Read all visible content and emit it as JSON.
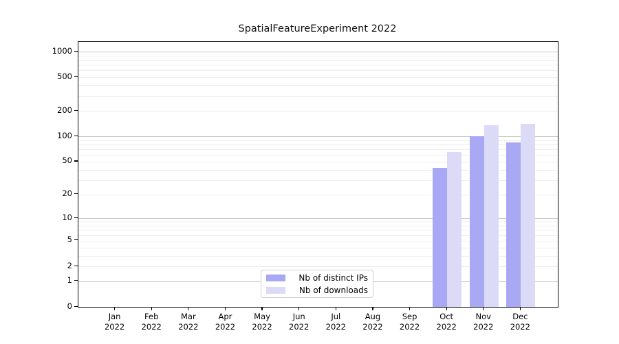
{
  "figure": {
    "background": "#ffffff",
    "text_color": "#000000"
  },
  "chart_data": {
    "type": "bar",
    "title": "SpatialFeatureExperiment 2022",
    "xlabel": "",
    "ylabel": "",
    "categories": [
      "Jan",
      "Feb",
      "Mar",
      "Apr",
      "May",
      "Jun",
      "Jul",
      "Aug",
      "Sep",
      "Oct",
      "Nov",
      "Dec"
    ],
    "category_year": "2022",
    "series": [
      {
        "name": "Nb of distinct IPs",
        "color": "#a8a8f4",
        "values": [
          0,
          0,
          0,
          0,
          0,
          0,
          0,
          0,
          0,
          42,
          100,
          85
        ]
      },
      {
        "name": "Nb of downloads",
        "color": "#dbdbf8",
        "values": [
          0,
          0,
          0,
          0,
          0,
          0,
          0,
          0,
          0,
          65,
          135,
          140
        ]
      }
    ],
    "yscale": "log1p",
    "yticks": [
      0,
      1,
      2,
      5,
      10,
      20,
      50,
      100,
      200,
      500,
      1000
    ],
    "ylim": [
      0,
      1300
    ],
    "grid": {
      "enabled": true,
      "major_color": "#c8c8c8",
      "minor_color": "#ededed"
    },
    "legend": {
      "position": "bottom-center-inside"
    }
  }
}
